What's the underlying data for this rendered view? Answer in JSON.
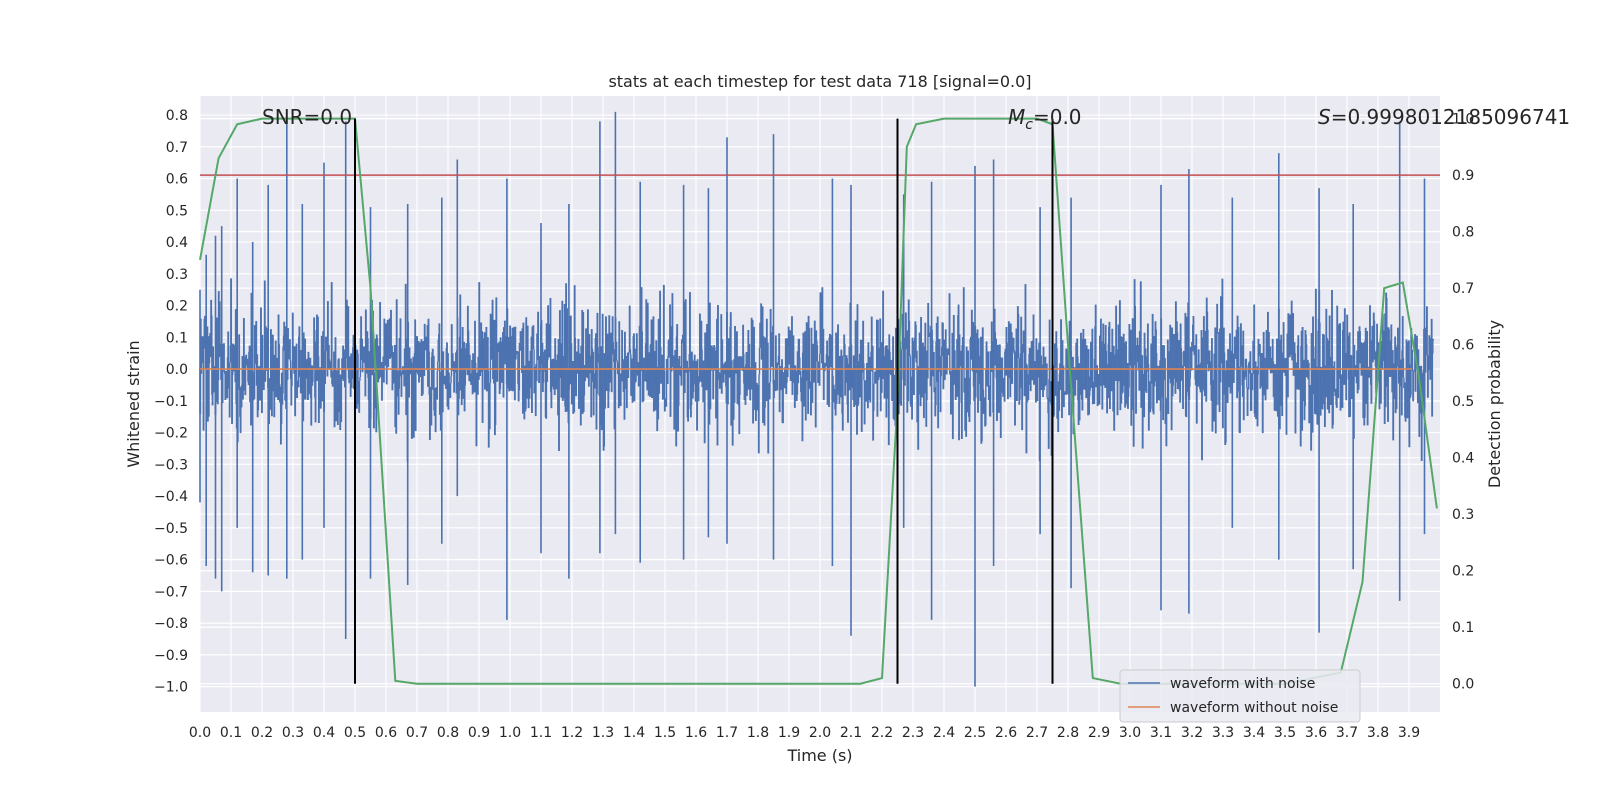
{
  "chart_data": {
    "type": "line",
    "title": "stats at each timestep for test data 718 [signal=0.0]",
    "xlabel": "Time (s)",
    "ylabel": "Whitened strain",
    "y2label": "Detection probability",
    "xlim": [
      0.0,
      4.0
    ],
    "ylim": [
      -1.08,
      0.86
    ],
    "y2lim": [
      -0.05,
      1.04
    ],
    "xticks": [
      "0.0",
      "0.1",
      "0.2",
      "0.3",
      "0.4",
      "0.5",
      "0.6",
      "0.7",
      "0.8",
      "0.9",
      "1.0",
      "1.1",
      "1.2",
      "1.3",
      "1.4",
      "1.5",
      "1.6",
      "1.7",
      "1.8",
      "1.9",
      "2.0",
      "2.1",
      "2.2",
      "2.3",
      "2.4",
      "2.5",
      "2.6",
      "2.7",
      "2.8",
      "2.9",
      "3.0",
      "3.1",
      "3.2",
      "3.3",
      "3.4",
      "3.5",
      "3.6",
      "3.7",
      "3.8",
      "3.9"
    ],
    "yticks": [
      "0.8",
      "0.7",
      "0.6",
      "0.5",
      "0.4",
      "0.3",
      "0.2",
      "0.1",
      "0.0",
      "−0.1",
      "−0.2",
      "−0.3",
      "−0.4",
      "−0.5",
      "−0.6",
      "−0.7",
      "−0.8",
      "−0.9",
      "−1.0"
    ],
    "y2ticks": [
      "1.0",
      "0.9",
      "0.8",
      "0.7",
      "0.6",
      "0.5",
      "0.4",
      "0.3",
      "0.2",
      "0.1",
      "0.0"
    ],
    "annotations": {
      "snr": "SNR=0.0",
      "mc_symbol": "M",
      "mc_sub": "c",
      "mc_value": "=0.0",
      "s_symbol": "S",
      "s_value": "=0.9998012185096741"
    },
    "grid": true,
    "legend_position": "lower-right",
    "series": [
      {
        "name": "waveform with noise",
        "color": "#4c72b0",
        "kind": "noise-trace",
        "spikes": [
          [
            0.0,
            0.25,
            -0.42
          ],
          [
            0.02,
            0.36,
            -0.62
          ],
          [
            0.05,
            0.42,
            -0.66
          ],
          [
            0.07,
            0.45,
            -0.7
          ],
          [
            0.12,
            0.6,
            -0.5
          ],
          [
            0.17,
            0.4,
            -0.64
          ],
          [
            0.22,
            0.58,
            -0.65
          ],
          [
            0.28,
            0.8,
            -0.66
          ],
          [
            0.33,
            0.52,
            -0.6
          ],
          [
            0.4,
            0.65,
            -0.5
          ],
          [
            0.47,
            0.78,
            -0.85
          ],
          [
            0.55,
            0.51,
            -0.66
          ],
          [
            0.67,
            0.52,
            -0.68
          ],
          [
            0.78,
            0.54,
            -0.55
          ],
          [
            0.83,
            0.66,
            -0.4
          ],
          [
            0.99,
            0.6,
            -0.79
          ],
          [
            1.1,
            0.46,
            -0.58
          ],
          [
            1.19,
            0.52,
            -0.66
          ],
          [
            1.29,
            0.78,
            -0.58
          ],
          [
            1.34,
            0.81,
            -0.52
          ],
          [
            1.42,
            0.59,
            -0.61
          ],
          [
            1.56,
            0.58,
            -0.6
          ],
          [
            1.64,
            0.57,
            -0.53
          ],
          [
            1.7,
            0.73,
            -0.55
          ],
          [
            1.85,
            0.74,
            -0.6
          ],
          [
            2.04,
            0.6,
            -0.62
          ],
          [
            2.1,
            0.58,
            -0.84
          ],
          [
            2.27,
            0.55,
            -0.5
          ],
          [
            2.36,
            0.59,
            -0.79
          ],
          [
            2.5,
            0.64,
            -1.0
          ],
          [
            2.56,
            0.66,
            -0.62
          ],
          [
            2.71,
            0.51,
            -0.52
          ],
          [
            2.81,
            0.54,
            -0.69
          ],
          [
            3.1,
            0.58,
            -0.76
          ],
          [
            3.19,
            0.63,
            -0.77
          ],
          [
            3.33,
            0.54,
            -0.5
          ],
          [
            3.48,
            0.68,
            -0.6
          ],
          [
            3.61,
            0.57,
            -0.83
          ],
          [
            3.72,
            0.52,
            -0.63
          ],
          [
            3.87,
            0.78,
            -0.73
          ],
          [
            3.95,
            0.6,
            -0.52
          ]
        ]
      },
      {
        "name": "waveform without noise",
        "color": "#dd8452",
        "x": [
          0.0,
          4.0
        ],
        "y": [
          0.0,
          0.0
        ]
      },
      {
        "name": "",
        "color": "#55a868",
        "axis": "y2",
        "x": [
          0.0,
          0.06,
          0.12,
          0.2,
          0.3,
          0.5,
          0.55,
          0.63,
          0.7,
          1.0,
          1.5,
          2.0,
          2.13,
          2.2,
          2.25,
          2.28,
          2.31,
          2.4,
          2.7,
          2.75,
          2.8,
          2.88,
          2.97,
          3.1,
          3.3,
          3.5,
          3.68,
          3.75,
          3.82,
          3.88,
          3.93,
          3.99
        ],
        "y": [
          0.75,
          0.93,
          0.99,
          1.0,
          1.0,
          1.0,
          0.7,
          0.005,
          0.0,
          0.0,
          0.0,
          0.0,
          0.0,
          0.01,
          0.5,
          0.95,
          0.99,
          1.0,
          1.0,
          0.99,
          0.6,
          0.01,
          0.0,
          0.0,
          0.0,
          0.0,
          0.02,
          0.18,
          0.7,
          0.71,
          0.55,
          0.31
        ]
      }
    ],
    "hlines": [
      {
        "y2": 0.9,
        "color": "#c44e52"
      }
    ],
    "vlines": [
      {
        "x": 0.5,
        "y2_from": 0.0,
        "y2_to": 1.0,
        "color": "#000000"
      },
      {
        "x": 2.25,
        "y2_from": 0.0,
        "y2_to": 1.0,
        "color": "#000000"
      },
      {
        "x": 2.75,
        "y2_from": 0.0,
        "y2_to": 1.0,
        "color": "#000000"
      }
    ],
    "legend": [
      "waveform with noise",
      "waveform without noise"
    ]
  }
}
